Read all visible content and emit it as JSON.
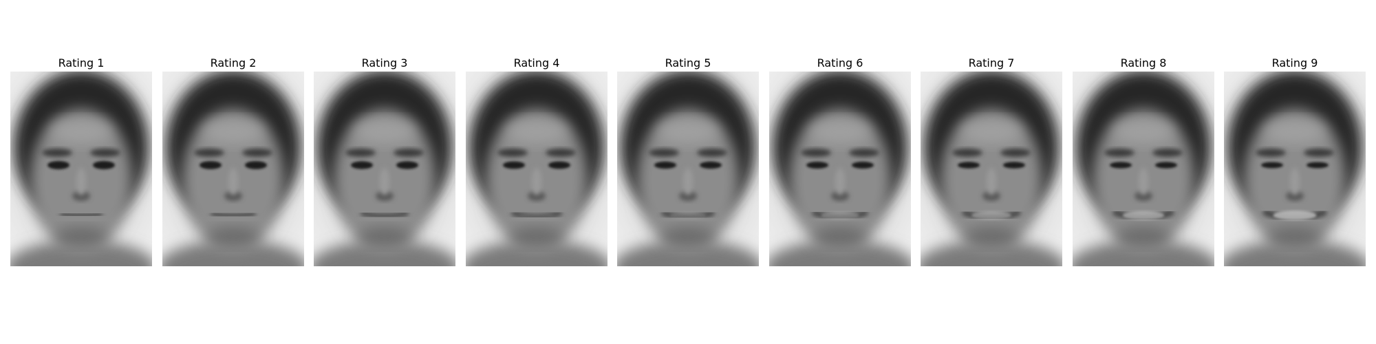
{
  "panels": [
    {
      "title": "Rating 1",
      "smile": 0.0
    },
    {
      "title": "Rating 2",
      "smile": 0.12
    },
    {
      "title": "Rating 3",
      "smile": 0.25
    },
    {
      "title": "Rating 4",
      "smile": 0.38
    },
    {
      "title": "Rating 5",
      "smile": 0.5
    },
    {
      "title": "Rating 6",
      "smile": 0.63
    },
    {
      "title": "Rating 7",
      "smile": 0.75
    },
    {
      "title": "Rating 8",
      "smile": 0.88
    },
    {
      "title": "Rating 9",
      "smile": 1.0
    }
  ]
}
